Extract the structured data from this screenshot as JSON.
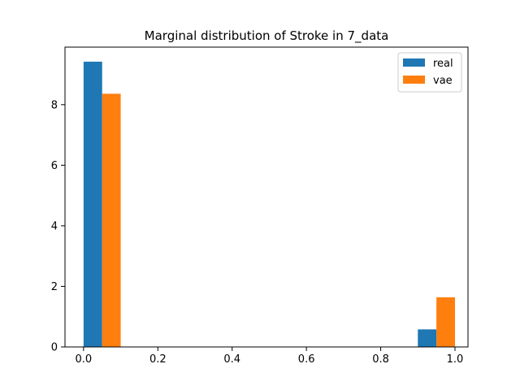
{
  "chart_data": {
    "type": "bar",
    "title": "Marginal distribution of Stroke in 7_data",
    "xlabel": "",
    "ylabel": "",
    "xlim": [
      -0.05,
      1.035
    ],
    "ylim": [
      0,
      9.9
    ],
    "x_ticks": [
      0.0,
      0.2,
      0.4,
      0.6,
      0.8,
      1.0
    ],
    "x_tick_labels": [
      "0.0",
      "0.2",
      "0.4",
      "0.6",
      "0.8",
      "1.0"
    ],
    "y_ticks": [
      0,
      2,
      4,
      6,
      8
    ],
    "y_tick_labels": [
      "0",
      "2",
      "4",
      "6",
      "8"
    ],
    "bins": [
      [
        0.0,
        0.1
      ],
      [
        0.9,
        1.0
      ]
    ],
    "series": [
      {
        "name": "real",
        "color": "#1f77b4",
        "values": [
          9.42,
          0.58
        ]
      },
      {
        "name": "vae",
        "color": "#ff7f0e",
        "values": [
          8.36,
          1.64
        ]
      }
    ],
    "legend_position": "top-right",
    "grid": false
  }
}
